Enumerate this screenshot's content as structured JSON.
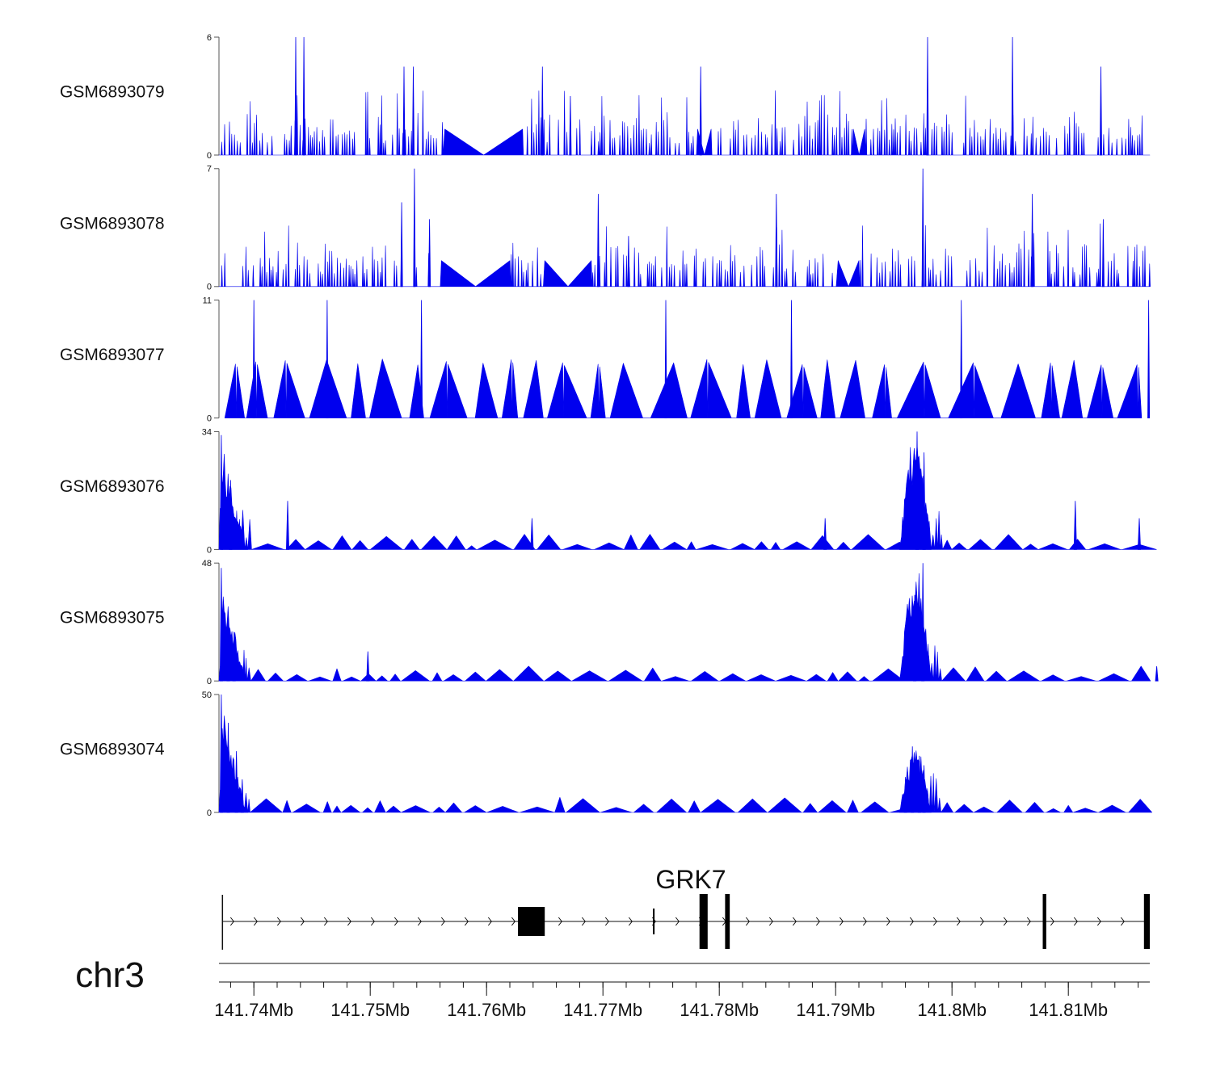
{
  "chart_data": {
    "type": "area",
    "title": "",
    "chromosome": "chr3",
    "genomic_range_mb": [
      141.737,
      141.817
    ],
    "series_color": "#0000ee",
    "tracks": [
      {
        "name": "GSM6893079",
        "ymax": 6,
        "ymax_label": "6",
        "ymin_label": "0",
        "profile": "noisy",
        "seed": 11,
        "peaks": [
          [
            141.7436,
            6
          ],
          [
            141.7443,
            6
          ],
          [
            141.7529,
            4.5
          ],
          [
            141.7537,
            4.5
          ],
          [
            141.7648,
            4.5
          ],
          [
            141.7672,
            3
          ],
          [
            141.7784,
            4.5
          ],
          [
            141.7979,
            6
          ],
          [
            141.8052,
            6
          ],
          [
            141.8128,
            4.5
          ]
        ],
        "gaps": [
          [
            141.7563,
            141.7631
          ],
          [
            141.778,
            141.7793
          ],
          [
            141.7915,
            141.7925
          ]
        ]
      },
      {
        "name": "GSM6893078",
        "ymax": 7,
        "ymax_label": "7",
        "ymin_label": "0",
        "profile": "noisy",
        "seed": 23,
        "peaks": [
          [
            141.7527,
            5
          ],
          [
            141.7538,
            7
          ],
          [
            141.7551,
            4
          ],
          [
            141.7696,
            5.5
          ],
          [
            141.7722,
            3
          ],
          [
            141.7849,
            5.5
          ],
          [
            141.7975,
            7
          ],
          [
            141.8069,
            5.5
          ],
          [
            141.813,
            4
          ]
        ],
        "gaps": [
          [
            141.756,
            141.762
          ],
          [
            141.765,
            141.769
          ],
          [
            141.79,
            141.792
          ]
        ]
      },
      {
        "name": "GSM6893077",
        "ymax": 11,
        "ymax_label": "11",
        "ymin_label": "0",
        "profile": "sparse",
        "seed": 37,
        "peaks": [
          [
            141.74,
            11
          ],
          [
            141.7463,
            11
          ],
          [
            141.7544,
            11
          ],
          [
            141.7754,
            11
          ],
          [
            141.7862,
            11
          ],
          [
            141.8008,
            11
          ],
          [
            141.8169,
            11
          ]
        ],
        "gaps": [
          [
            141.735,
            141.7374
          ],
          [
            141.8161,
            141.819
          ]
        ]
      },
      {
        "name": "GSM6893076",
        "ymax": 34,
        "ymax_label": "34",
        "ymin_label": "0",
        "profile": "background",
        "seed": 41,
        "peaks": [
          [
            141.7372,
            33
          ],
          [
            141.738,
            20
          ],
          [
            141.7429,
            14
          ],
          [
            141.7639,
            9
          ],
          [
            141.7891,
            9
          ],
          [
            141.797,
            34
          ],
          [
            141.7976,
            28
          ],
          [
            141.8106,
            14
          ],
          [
            141.8161,
            9
          ]
        ],
        "gaps": []
      },
      {
        "name": "GSM6893075",
        "ymax": 48,
        "ymax_label": "48",
        "ymin_label": "0",
        "profile": "background",
        "seed": 53,
        "peaks": [
          [
            141.7372,
            46
          ],
          [
            141.7378,
            28
          ],
          [
            141.7383,
            20
          ],
          [
            141.7498,
            12
          ],
          [
            141.7968,
            35
          ],
          [
            141.7975,
            48
          ],
          [
            141.8176,
            6
          ]
        ],
        "gaps": []
      },
      {
        "name": "GSM6893074",
        "ymax": 50,
        "ymax_label": "50",
        "ymin_label": "0",
        "profile": "background",
        "seed": 67,
        "peaks": [
          [
            141.7372,
            50
          ],
          [
            141.7378,
            38
          ],
          [
            141.7385,
            26
          ],
          [
            141.739,
            14
          ],
          [
            141.7966,
            28
          ],
          [
            141.7972,
            24
          ],
          [
            141.7976,
            20
          ],
          [
            141.796,
            15
          ]
        ],
        "gaps": []
      }
    ],
    "gene": {
      "name": "GRK7",
      "strand": "+",
      "start_mb": 141.7373,
      "end_mb": 141.817,
      "exons": [
        [
          141.7627,
          141.765
        ],
        [
          141.7743,
          141.7744
        ],
        [
          141.7783,
          141.779
        ],
        [
          141.7805,
          141.7809
        ],
        [
          141.8078,
          141.8081
        ],
        [
          141.8165,
          141.817
        ]
      ]
    },
    "x_axis": {
      "ticks_mb": [
        141.74,
        141.75,
        141.76,
        141.77,
        141.78,
        141.79,
        141.8,
        141.81
      ],
      "tick_labels": [
        "141.74Mb",
        "141.75Mb",
        "141.76Mb",
        "141.77Mb",
        "141.78Mb",
        "141.79Mb",
        "141.8Mb",
        "141.81Mb"
      ],
      "minor_step_mb": 0.002
    }
  }
}
